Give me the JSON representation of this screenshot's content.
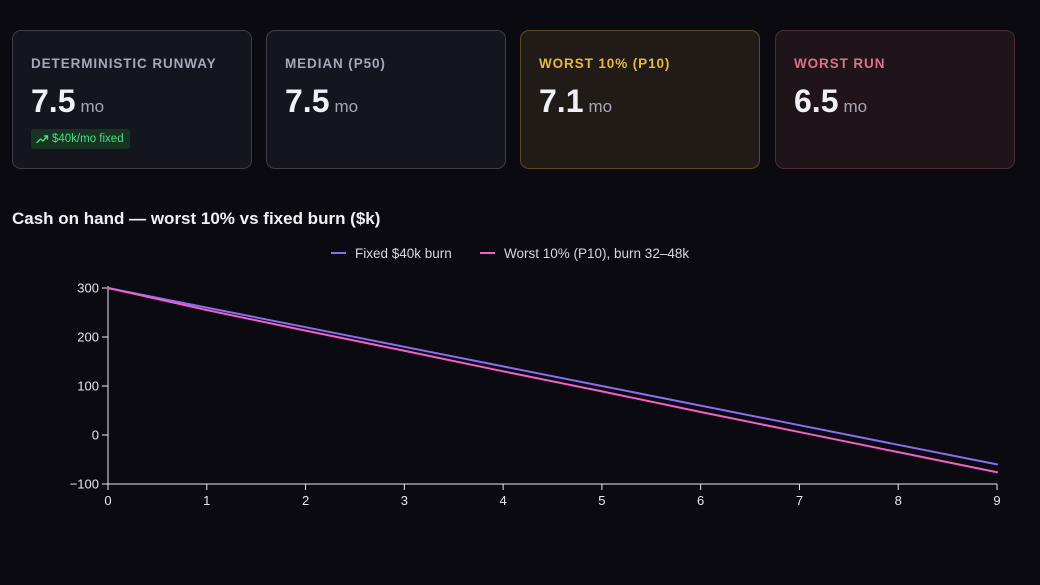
{
  "cards": [
    {
      "label": "DETERMINISTIC RUNWAY",
      "value": "7.5",
      "unit": "mo",
      "badge": "$40k/mo fixed"
    },
    {
      "label": "MEDIAN (P50)",
      "value": "7.5",
      "unit": "mo"
    },
    {
      "label": "WORST 10% (P10)",
      "value": "7.1",
      "unit": "mo"
    },
    {
      "label": "WORST RUN",
      "value": "6.5",
      "unit": "mo"
    }
  ],
  "colors": {
    "fixed": "#8b6cf6",
    "p10": "#f062c8",
    "badge": "#4ade80",
    "p10_card": "#e8b83a",
    "worst_card": "#e07088"
  },
  "chart_data": {
    "type": "line",
    "title": "Cash on hand — worst 10% vs fixed burn ($k)",
    "x": [
      0,
      1,
      2,
      3,
      4,
      5,
      6,
      7,
      8,
      9
    ],
    "series": [
      {
        "name": "Fixed $40k burn",
        "values": [
          300,
          260,
          220,
          180,
          140,
          100,
          60,
          20,
          -20,
          -60
        ]
      },
      {
        "name": "Worst 10% (P10), burn 32–48k",
        "values": [
          300,
          255,
          213,
          172,
          130,
          89,
          47,
          6,
          -35,
          -76
        ]
      }
    ],
    "xlim": [
      0,
      9
    ],
    "ylim": [
      -100,
      300
    ],
    "yticks": [
      -100,
      0,
      100,
      200,
      300
    ],
    "xticks": [
      0,
      1,
      2,
      3,
      4,
      5,
      6,
      7,
      8,
      9
    ],
    "legend": "top-center",
    "grid": false
  }
}
